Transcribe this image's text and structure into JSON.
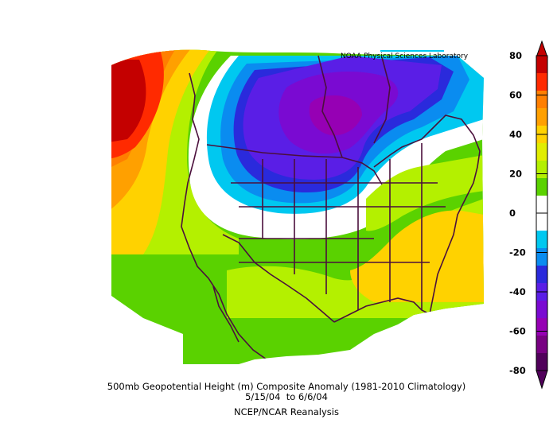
{
  "credit": "NOAA Physical Sciences Laboratory",
  "caption": {
    "line1": "500mb Geopotential Height (m) Composite Anomaly (1981-2010 Climatology)",
    "line2": "5/15/04  to 6/6/04",
    "source": "NCEP/NCAR Reanalysis"
  },
  "colorbar": {
    "ticks": [
      "80",
      "60",
      "40",
      "20",
      "0",
      "-20",
      "-40",
      "-60",
      "-80"
    ],
    "colors": [
      "#c40000",
      "#ff2a00",
      "#ff7f00",
      "#ffa000",
      "#ffd200",
      "#e1ed00",
      "#b4f000",
      "#5ad200",
      "#ffffff",
      "#ffffff",
      "#00c8f0",
      "#0a8cf0",
      "#2a2adc",
      "#5a1ee6",
      "#7a0ad2",
      "#9600b4",
      "#780082",
      "#50005a"
    ]
  }
}
